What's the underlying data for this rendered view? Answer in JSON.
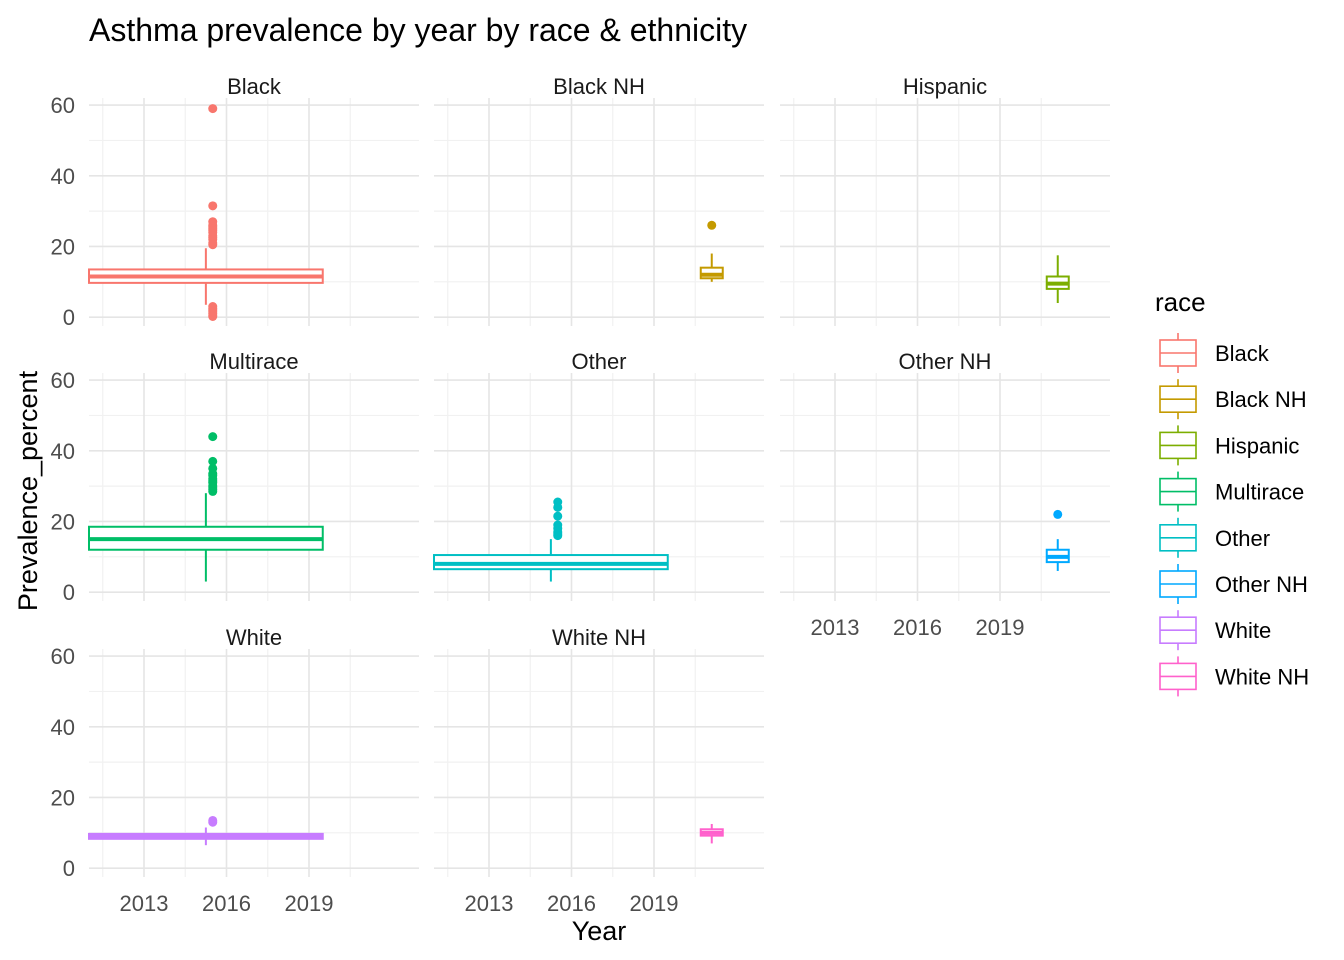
{
  "chart_data": {
    "type": "boxplot",
    "title": "Asthma prevalence by year by race & ethnicity",
    "xlabel": "Year",
    "ylabel": "Prevalence_percent",
    "x_ticks": [
      2013,
      2016,
      2019
    ],
    "xlim": [
      2011,
      2023
    ],
    "y_ticks": [
      0,
      20,
      40,
      60
    ],
    "ylim": [
      -2.5,
      62
    ],
    "grid": true,
    "legend_title": "race",
    "legend_position": "right",
    "facets": [
      {
        "name": "Black",
        "color": "#F8766D",
        "box": {
          "x_start": 2011,
          "x_end": 2019.5,
          "q1": 9.7,
          "median": 11.5,
          "q3": 13.5,
          "whisker_low": 3.5,
          "whisker_high": 19.5
        },
        "outliers_x": 2015.5,
        "outliers": [
          59,
          31.5,
          27,
          26,
          25.5,
          25,
          24.5,
          24,
          23,
          22.5,
          22,
          21,
          20.5,
          3,
          2.5,
          2,
          1.5,
          1,
          0.5,
          0.2
        ]
      },
      {
        "name": "Black NH",
        "color": "#C49A00",
        "box": {
          "x_start": 2020.7,
          "x_end": 2021.5,
          "q1": 11,
          "median": 12,
          "q3": 14,
          "whisker_low": 10,
          "whisker_high": 18
        },
        "outliers_x": 2021.1,
        "outliers": [
          26
        ]
      },
      {
        "name": "Hispanic",
        "color": "#7CAE00",
        "box": {
          "x_start": 2020.7,
          "x_end": 2021.5,
          "q1": 8,
          "median": 9.5,
          "q3": 11.5,
          "whisker_low": 4,
          "whisker_high": 17.5
        },
        "outliers_x": 2021.1,
        "outliers": []
      },
      {
        "name": "Multirace",
        "color": "#00BE67",
        "box": {
          "x_start": 2011,
          "x_end": 2019.5,
          "q1": 12,
          "median": 15,
          "q3": 18.5,
          "whisker_low": 3,
          "whisker_high": 28
        },
        "outliers_x": 2015.5,
        "outliers": [
          44,
          37,
          35,
          33.5,
          33,
          32,
          31.5,
          31,
          30,
          29.5,
          29,
          28.5
        ]
      },
      {
        "name": "Other",
        "color": "#00BFC4",
        "box": {
          "x_start": 2011,
          "x_end": 2019.5,
          "q1": 6.5,
          "median": 8,
          "q3": 10.5,
          "whisker_low": 3,
          "whisker_high": 15
        },
        "outliers_x": 2015.5,
        "outliers": [
          25.5,
          24,
          21.5,
          19,
          18,
          17,
          16.5,
          16
        ]
      },
      {
        "name": "Other NH",
        "color": "#00A9FF",
        "box": {
          "x_start": 2020.7,
          "x_end": 2021.5,
          "q1": 8.5,
          "median": 10,
          "q3": 12,
          "whisker_low": 6,
          "whisker_high": 15
        },
        "outliers_x": 2021.1,
        "outliers": [
          22
        ]
      },
      {
        "name": "White",
        "color": "#C77CFF",
        "box": {
          "x_start": 2011,
          "x_end": 2019.5,
          "q1": 8.3,
          "median": 9,
          "q3": 9.7,
          "whisker_low": 6.5,
          "whisker_high": 11.5
        },
        "outliers_x": 2015.5,
        "outliers": [
          13.5,
          13
        ]
      },
      {
        "name": "White NH",
        "color": "#FF61CC",
        "box": {
          "x_start": 2020.7,
          "x_end": 2021.5,
          "q1": 9.2,
          "median": 10,
          "q3": 11,
          "whisker_low": 7,
          "whisker_high": 12.5
        },
        "outliers_x": 2021.1,
        "outliers": []
      }
    ]
  }
}
